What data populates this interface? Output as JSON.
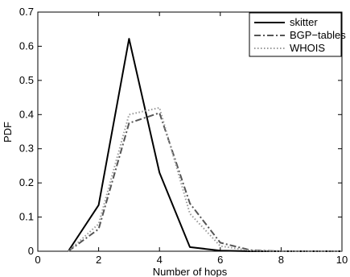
{
  "chart_data": {
    "type": "line",
    "title": "",
    "xlabel": "Number of hops",
    "ylabel": "PDF",
    "xlim": [
      0,
      10
    ],
    "ylim": [
      0,
      0.7
    ],
    "xticks": [
      "0",
      "2",
      "4",
      "6",
      "8",
      "10"
    ],
    "yticks": [
      "0",
      "0.1",
      "0.2",
      "0.3",
      "0.4",
      "0.5",
      "0.6",
      "0.7"
    ],
    "grid": false,
    "legend_position": "top-right",
    "series": [
      {
        "name": "skitter",
        "style": "solid",
        "color": "#000000",
        "x": [
          1,
          2,
          3,
          4,
          5,
          6,
          7,
          8,
          9,
          10
        ],
        "y": [
          0.0,
          0.135,
          0.622,
          0.23,
          0.012,
          0.002,
          0.0,
          0.0,
          0.0,
          0.0
        ]
      },
      {
        "name": "BGP−tables",
        "style": "dashdot",
        "color": "#555555",
        "x": [
          1,
          2,
          3,
          4,
          5,
          6,
          7,
          8,
          9,
          10
        ],
        "y": [
          0.0,
          0.065,
          0.375,
          0.405,
          0.14,
          0.025,
          0.003,
          0.0,
          0.0,
          0.0
        ]
      },
      {
        "name": "WHOIS",
        "style": "dotted",
        "color": "#999999",
        "x": [
          1,
          2,
          3,
          4,
          5,
          6,
          7,
          8,
          9,
          10
        ],
        "y": [
          0.0,
          0.08,
          0.4,
          0.42,
          0.11,
          0.015,
          0.002,
          0.0,
          0.0,
          0.0
        ]
      }
    ]
  }
}
